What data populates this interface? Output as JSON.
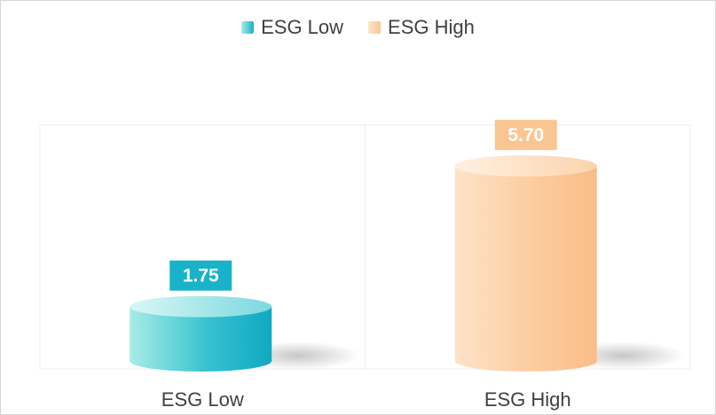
{
  "chart_data": {
    "type": "bar",
    "categories": [
      "ESG Low",
      "ESG High"
    ],
    "series": [
      {
        "name": "ESG Low",
        "values": [
          1.75,
          null
        ]
      },
      {
        "name": "ESG High",
        "values": [
          null,
          5.7
        ]
      }
    ],
    "values": [
      1.75,
      5.7
    ],
    "value_labels": [
      "1.75",
      "5.70"
    ],
    "ylim": [
      0,
      6.85
    ],
    "legend_position": "top-center",
    "style": "3d-cylinder",
    "colors": {
      "ESG Low": "#1ab2c8",
      "ESG High": "#fbc592"
    }
  },
  "legend": {
    "items": [
      {
        "label": "ESG Low",
        "color": "#1ab2c8"
      },
      {
        "label": "ESG High",
        "color": "#fbc592"
      }
    ]
  }
}
